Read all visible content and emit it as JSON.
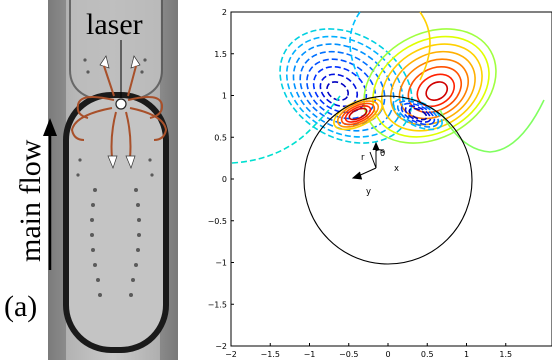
{
  "photo": {
    "laser_label": "laser",
    "flow_label": "main flow",
    "panel_label": "(a)"
  },
  "plot": {
    "x_ticks": [
      "−2",
      "−1.5",
      "−1",
      "−0.5",
      "0",
      "0.5",
      "1",
      "1.5"
    ],
    "y_ticks": [
      "2",
      "1.5",
      "1",
      "0.5",
      "0",
      "−0.5",
      "−1",
      "−1.5",
      "−2"
    ],
    "annotations": {
      "r": "r",
      "theta": "θ",
      "x": "x",
      "y": "y"
    }
  },
  "colors": {
    "background": "#ffffff",
    "photo_gray": "#9a9a9a",
    "streamline_arrow": "#a8502a",
    "contour_palette": [
      "#00c0ff",
      "#0060ff",
      "#0000ff",
      "#ff0000",
      "#ff8000",
      "#ffd000",
      "#80ff40"
    ]
  }
}
